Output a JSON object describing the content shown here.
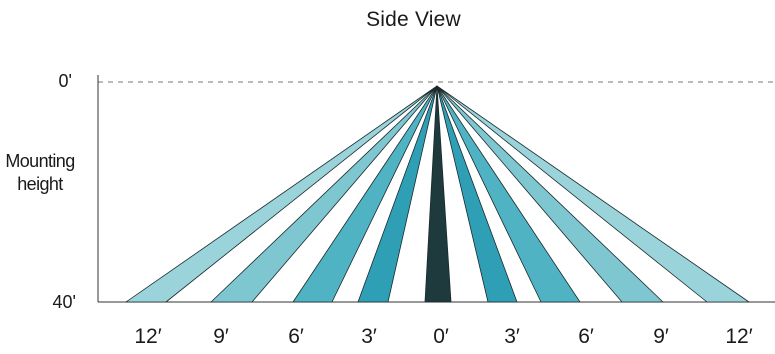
{
  "title": "Side View",
  "ylabel": "Mounting height",
  "y_ticks": [
    "0'",
    "40'"
  ],
  "x_ticks": [
    "12′",
    "9′",
    "6′",
    "3′",
    "0′",
    "3′",
    "6′",
    "9′",
    "12′"
  ],
  "colors": {
    "center_beam": "#1e3a3d",
    "beam_inner": "#2f9fb6",
    "beam_mid": "#4fb3c4",
    "beam_outer": "#7ec6d0",
    "beam_edge": "#9ad3da",
    "beam_stroke": "#1a2a2c",
    "dashed_line": "#777777"
  }
}
